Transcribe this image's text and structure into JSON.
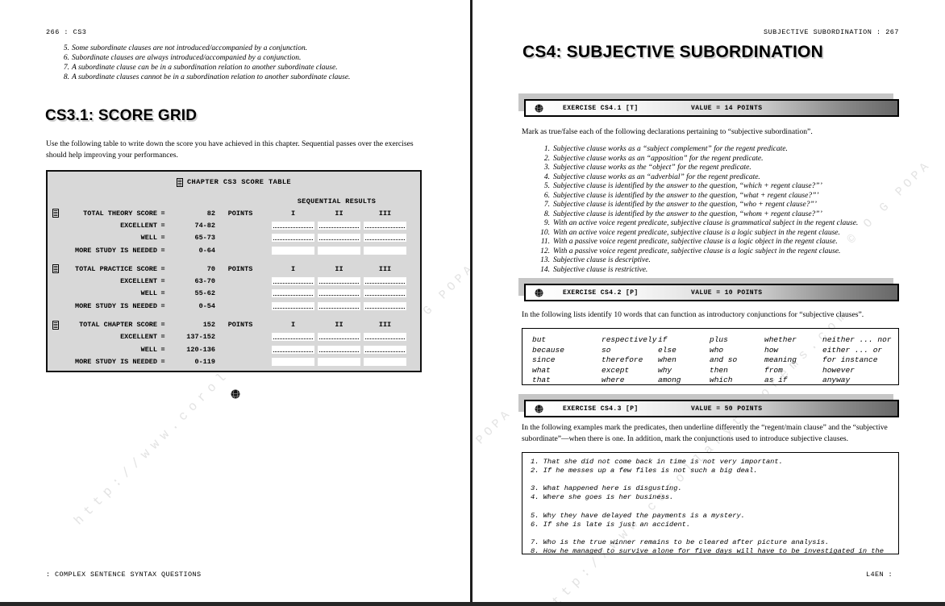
{
  "watermarks": {
    "url": "http://www.corollarytheorems.com",
    "copyright": "© O G POPA"
  },
  "left_page": {
    "header": "266 : CS3",
    "footer": ": COMPLEX SENTENCE SYNTAX QUESTIONS",
    "intro_items": [
      {
        "n": "5.",
        "text": "Some subordinate clauses are not introduced/accompanied by a conjunction."
      },
      {
        "n": "6.",
        "text": "Subordinate clauses are always introduced/accompanied by a conjunction."
      },
      {
        "n": "7.",
        "text": "A subordinate clause can be in a subordination relation to another subordinate clause."
      },
      {
        "n": "8.",
        "text": "A subordinate clauses cannot be in a subordination relation to another subordinate clause."
      }
    ],
    "section_title": "CS3.1: SCORE GRID",
    "intro_paragraph": "Use the following table to write down the score you have achieved in this chapter. Sequential passes over the exercises should help improving your performances.",
    "score_table": {
      "title": "CHAPTER CS3 SCORE TABLE",
      "sequential_header": "SEQUENTIAL RESULTS",
      "points_label": "POINTS",
      "columns": [
        "I",
        "II",
        "III"
      ],
      "sections": [
        {
          "name": "TOTAL THEORY SCORE",
          "eq": "=",
          "total": "82",
          "rows": [
            {
              "label": "EXCELLENT",
              "eq": "=",
              "range": "74-82",
              "dotted": true
            },
            {
              "label": "WELL",
              "eq": "=",
              "range": "65-73",
              "dotted": true
            },
            {
              "label": "MORE STUDY IS NEEDED",
              "eq": "=",
              "range": "0-64",
              "dotted": false
            }
          ]
        },
        {
          "name": "TOTAL PRACTICE SCORE",
          "eq": "=",
          "total": "70",
          "rows": [
            {
              "label": "EXCELLENT",
              "eq": "=",
              "range": "63-70",
              "dotted": true
            },
            {
              "label": "WELL",
              "eq": "=",
              "range": "55-62",
              "dotted": true
            },
            {
              "label": "MORE STUDY IS NEEDED",
              "eq": "=",
              "range": "0-54",
              "dotted": true
            }
          ]
        },
        {
          "name": "TOTAL CHAPTER SCORE",
          "eq": "=",
          "total": "152",
          "rows": [
            {
              "label": "EXCELLENT",
              "eq": "=",
              "range": "137-152",
              "dotted": true
            },
            {
              "label": "WELL",
              "eq": "=",
              "range": "120-136",
              "dotted": true
            },
            {
              "label": "MORE STUDY IS NEEDED",
              "eq": "=",
              "range": "0-119",
              "dotted": false
            }
          ]
        }
      ]
    }
  },
  "right_page": {
    "header": "SUBJECTIVE SUBORDINATION : 267",
    "footer": "L4EN :",
    "title": "CS4: SUBJECTIVE SUBORDINATION",
    "exercise1": {
      "label": "EXERCISE CS4.1 [T]",
      "value": "VALUE = 14 POINTS",
      "intro": "Mark as true/false each of the following declarations pertaining to “subjective subordination”.",
      "items": [
        {
          "n": "1.",
          "text": "Subjective clause works as a “subject complement” for the regent predicate."
        },
        {
          "n": "2.",
          "text": "Subjective clause works as an “apposition” for the regent predicate."
        },
        {
          "n": "3.",
          "text": "Subjective clause works as the “object” for the regent predicate."
        },
        {
          "n": "4.",
          "text": "Subjective clause works as an “adverbial” for the regent predicate."
        },
        {
          "n": "5.",
          "text": "Subjective clause is identified by the answer to the question, “which + regent clause?”’"
        },
        {
          "n": "6.",
          "text": "Subjective clause is identified by the answer to the question, “what + regent clause?”’"
        },
        {
          "n": "7.",
          "text": "Subjective clause is identified by the answer to the question, “who + regent clause?”’"
        },
        {
          "n": "8.",
          "text": "Subjective clause is identified by the answer to the question, “whom + regent clause?”’"
        },
        {
          "n": "9.",
          "text": "With an active voice regent predicate, subjective clause is grammatical subject in the regent clause."
        },
        {
          "n": "10.",
          "text": "With an active voice regent predicate, subjective clause is a logic subject in the regent clause."
        },
        {
          "n": "11.",
          "text": "With a passive voice regent predicate, subjective clause is a logic object in the regent clause."
        },
        {
          "n": "12.",
          "text": "With a passive voice regent predicate, subjective clause is a logic subject in the regent clause."
        },
        {
          "n": "13.",
          "text": "Subjective clause is descriptive."
        },
        {
          "n": "14.",
          "text": "Subjective clause is restrictive."
        }
      ]
    },
    "exercise2": {
      "label": "EXERCISE CS4.2 [P]",
      "value": "VALUE = 10 POINTS",
      "intro": "In the following lists identify 10 words that can function as introductory conjunctions for “subjective clauses”.",
      "word_columns": [
        [
          "but",
          "because",
          "since",
          "what",
          "that"
        ],
        [
          "respectively",
          "so",
          "therefore",
          "except",
          "where"
        ],
        [
          "if",
          "else",
          "when",
          "why",
          "among"
        ],
        [
          "plus",
          "who",
          "and so",
          "then",
          "which"
        ],
        [
          "whether",
          "how",
          "meaning",
          "from",
          "as if"
        ],
        [
          "neither ... nor",
          "either ... or",
          "for instance",
          "however",
          "anyway"
        ]
      ]
    },
    "exercise3": {
      "label": "EXERCISE CS4.3 [P]",
      "value": "VALUE = 50 POINTS",
      "intro": "In the following examples mark the predicates, then underline differently the “regent/main clause” and the “subjective subordinate”—when there is one. In addition, mark the conjunctions used to introduce subjective clauses.",
      "sentences": [
        "1. That she did not come back in time is not very important.",
        "2. If he messes up a few files is not such a big deal.",
        "",
        "3. What happened here is disgusting.",
        "4. Where she goes is her business.",
        "",
        "5. Why they have delayed the payments is a mystery.",
        "6. If she is late is just an accident.",
        "",
        "7. Who is the true winner remains to be cleared after picture analysis.",
        "8. How he managed to survive alone for five days will have to be investigated in the"
      ]
    }
  }
}
